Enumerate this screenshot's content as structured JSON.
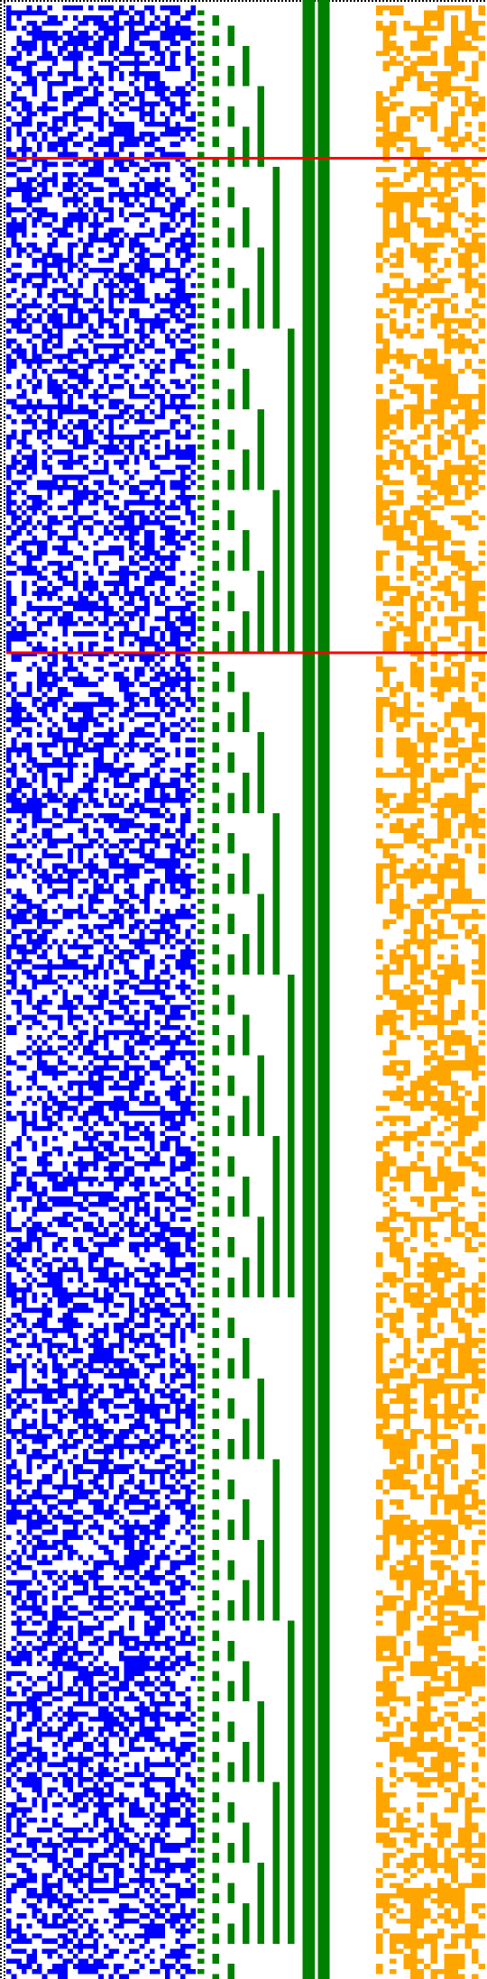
{
  "figure": {
    "colors": {
      "background": "#ffffff",
      "bit_set_left": "#0000ff",
      "counter": "#008000",
      "bit_set_right": "#ffa500",
      "marker_line": "#ff0000",
      "border_dots": "#000000"
    },
    "bit_columns_left": 37,
    "bit_columns_right": 16,
    "counter_columns": [
      {
        "period": 2
      },
      {
        "period": 4
      },
      {
        "period": 8
      },
      {
        "period": 16
      },
      {
        "period": 32
      },
      {
        "period": 64
      },
      {
        "period": 128
      },
      {
        "solid": true
      },
      {
        "solid": true
      },
      {
        "period": 1024
      },
      {
        "period": 2048
      },
      {
        "period": 4096
      }
    ],
    "rows": 391,
    "marker_rows": [
      30,
      128
    ]
  }
}
